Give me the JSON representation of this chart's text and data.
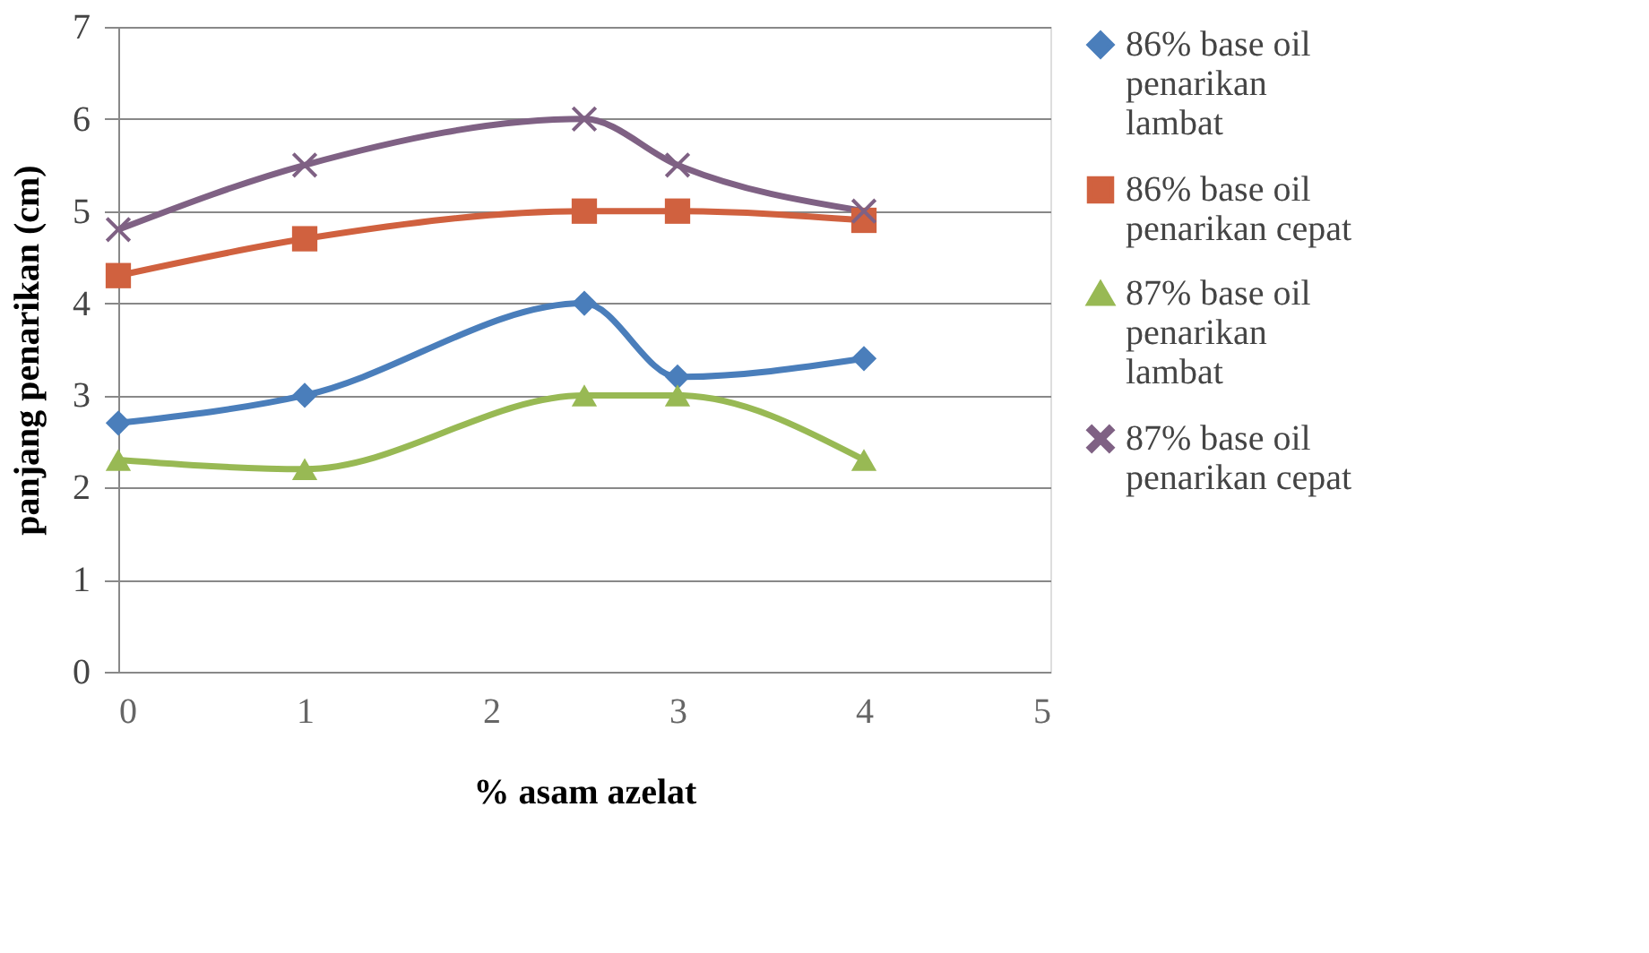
{
  "chart_data": {
    "type": "line",
    "xlabel": "% asam azelat",
    "ylabel": "panjang penarikan (cm)",
    "x": [
      0,
      1,
      2.5,
      3,
      4
    ],
    "xlim": [
      0,
      5
    ],
    "xticks": [
      0,
      1,
      2,
      3,
      4,
      5
    ],
    "ylim": [
      0,
      7
    ],
    "yticks": [
      0,
      1,
      2,
      3,
      4,
      5,
      6,
      7
    ],
    "grid": "y",
    "legend": "right",
    "line_style": "solid",
    "series": [
      {
        "name": "86% base oil penarikan lambat",
        "color": "#4a7ebb",
        "marker": "diamond",
        "values": [
          2.7,
          3.0,
          4.0,
          3.2,
          3.4
        ]
      },
      {
        "name": "86% base oil penarikan cepat",
        "color": "#d0613f",
        "marker": "square",
        "values": [
          4.3,
          4.7,
          5.0,
          5.0,
          4.9
        ]
      },
      {
        "name": "87% base oil penarikan lambat",
        "color": "#98b954",
        "marker": "triangle",
        "values": [
          2.3,
          2.2,
          3.0,
          3.0,
          2.3
        ]
      },
      {
        "name": "87% base oil penarikan cepat",
        "color": "#7f6184",
        "marker": "cross",
        "values": [
          4.8,
          5.5,
          6.0,
          5.5,
          5.0
        ]
      }
    ]
  }
}
